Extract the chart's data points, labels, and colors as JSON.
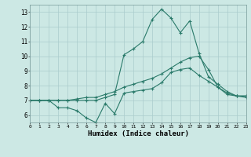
{
  "xlabel": "Humidex (Indice chaleur)",
  "background_color": "#cce8e4",
  "grid_color": "#aacccc",
  "line_color": "#2a7a6a",
  "x": [
    0,
    1,
    2,
    3,
    4,
    5,
    6,
    7,
    8,
    9,
    10,
    11,
    12,
    13,
    14,
    15,
    16,
    17,
    18,
    19,
    20,
    21,
    22,
    23
  ],
  "line_min": [
    7.0,
    7.0,
    7.0,
    6.5,
    6.5,
    6.3,
    5.8,
    5.5,
    6.8,
    6.1,
    7.5,
    7.6,
    7.7,
    7.8,
    8.2,
    8.9,
    9.1,
    9.2,
    8.7,
    8.3,
    7.9,
    7.5,
    7.3,
    7.3
  ],
  "line_avg": [
    7.0,
    7.0,
    7.0,
    7.0,
    7.0,
    7.1,
    7.2,
    7.2,
    7.4,
    7.6,
    7.9,
    8.1,
    8.3,
    8.5,
    8.8,
    9.2,
    9.6,
    9.9,
    10.0,
    9.1,
    7.9,
    7.4,
    7.3,
    7.2
  ],
  "line_max": [
    7.0,
    7.0,
    7.0,
    7.0,
    7.0,
    7.0,
    7.0,
    7.0,
    7.2,
    7.4,
    10.1,
    10.5,
    11.0,
    12.5,
    13.2,
    12.6,
    11.6,
    12.4,
    10.2,
    8.6,
    8.1,
    7.6,
    7.3,
    7.3
  ],
  "ylim": [
    5.5,
    13.5
  ],
  "xlim": [
    0,
    23
  ],
  "yticks": [
    6,
    7,
    8,
    9,
    10,
    11,
    12,
    13
  ],
  "xticks": [
    0,
    1,
    2,
    3,
    4,
    5,
    6,
    7,
    8,
    9,
    10,
    11,
    12,
    13,
    14,
    15,
    16,
    17,
    18,
    19,
    20,
    21,
    22,
    23
  ]
}
